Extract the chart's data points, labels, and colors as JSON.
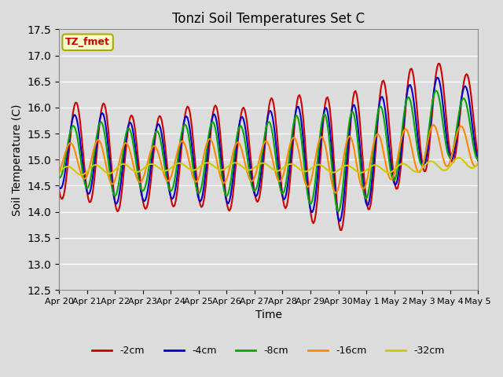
{
  "title": "Tonzi Soil Temperatures Set C",
  "xlabel": "Time",
  "ylabel": "Soil Temperature (C)",
  "ylim": [
    12.5,
    17.5
  ],
  "background_color": "#dcdcdc",
  "series_colors": {
    "-2cm": "#cc0000",
    "-4cm": "#0000cc",
    "-8cm": "#00aa00",
    "-16cm": "#ff8800",
    "-32cm": "#cccc00"
  },
  "series_labels": [
    "-2cm",
    "-4cm",
    "-8cm",
    "-16cm",
    "-32cm"
  ],
  "xtick_labels": [
    "Apr 20",
    "Apr 21",
    "Apr 22",
    "Apr 23",
    "Apr 24",
    "Apr 25",
    "Apr 26",
    "Apr 27",
    "Apr 28",
    "Apr 29",
    "Apr 30",
    "May 1",
    "May 2",
    "May 3",
    "May 4",
    "May 5"
  ],
  "annotation_text": "TZ_fmet",
  "annotation_bg": "#ffffcc",
  "annotation_border": "#aaaa00",
  "linewidth": 1.5
}
